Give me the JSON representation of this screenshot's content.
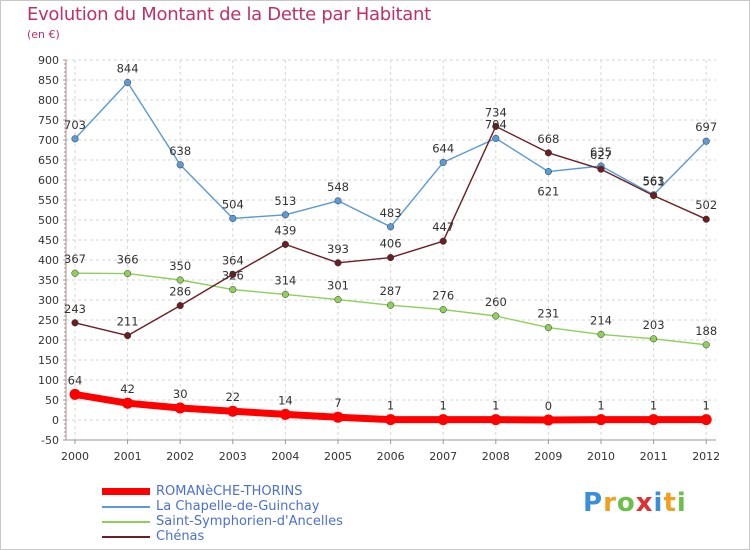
{
  "chart_data": {
    "type": "line",
    "title": "Evolution du Montant de la Dette par Habitant",
    "subtitle": "(en €)",
    "x": [
      "2000",
      "2001",
      "2002",
      "2003",
      "2004",
      "2005",
      "2006",
      "2007",
      "2008",
      "2009",
      "2010",
      "2011",
      "2012"
    ],
    "ylim": [
      -50,
      900
    ],
    "yticks": [
      "-50",
      "0",
      "50",
      "100",
      "150",
      "200",
      "250",
      "300",
      "350",
      "400",
      "450",
      "500",
      "550",
      "600",
      "650",
      "700",
      "750",
      "800",
      "850",
      "900"
    ],
    "grid": true,
    "legend_position": "bottom-left",
    "series": [
      {
        "name": "ROMANèCHE-THORINS",
        "color": "#ff0000",
        "values": [
          64,
          42,
          30,
          22,
          14,
          7,
          1,
          1,
          1,
          0,
          1,
          1,
          1
        ],
        "labels": [
          "64",
          "42",
          "30",
          "22",
          "14",
          "7",
          "1",
          "1",
          "1",
          "0",
          "1",
          "1",
          "1"
        ]
      },
      {
        "name": "La Chapelle-de-Guinchay",
        "color": "#5a9ad6",
        "values": [
          703,
          844,
          638,
          504,
          513,
          548,
          483,
          644,
          704,
          621,
          635,
          563,
          697
        ],
        "labels": [
          "703",
          "844",
          "638",
          "504",
          "513",
          "548",
          "483",
          "644",
          "704",
          "621",
          "635",
          "563",
          "697"
        ]
      },
      {
        "name": "Saint-Symphorien-d'Ancelles",
        "color": "#8ed05a",
        "values": [
          367,
          366,
          350,
          326,
          314,
          301,
          287,
          276,
          260,
          231,
          214,
          203,
          188
        ],
        "labels": [
          "367",
          "366",
          "350",
          "326",
          "314",
          "301",
          "287",
          "276",
          "260",
          "231",
          "214",
          "203",
          "188"
        ]
      },
      {
        "name": "Chénas",
        "color": "#6a1f24",
        "values": [
          243,
          211,
          286,
          364,
          439,
          393,
          406,
          447,
          734,
          668,
          627,
          561,
          502
        ],
        "labels": [
          "243",
          "211",
          "286",
          "364",
          "439",
          "393",
          "406",
          "447",
          "734",
          "668",
          "627",
          "561",
          "502"
        ]
      }
    ]
  },
  "logo": {
    "letters": [
      "P",
      "r",
      "o",
      "x",
      "i",
      "t",
      "i"
    ],
    "colors": [
      "#3a8fd8",
      "#f0a020",
      "#6cc04a",
      "#e03030",
      "#3a8fd8",
      "#f0a020",
      "#6cc04a"
    ]
  }
}
